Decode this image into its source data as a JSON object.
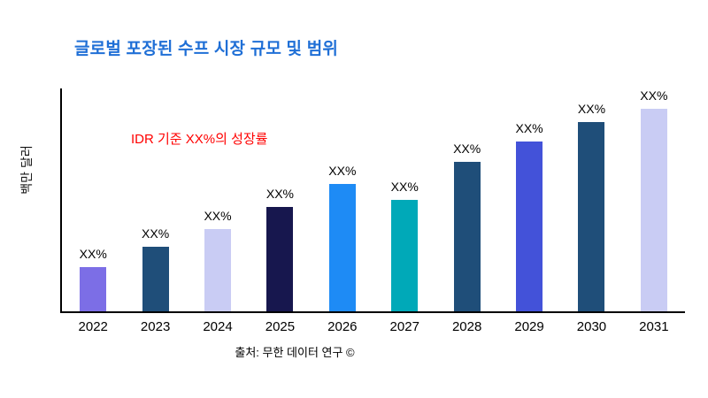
{
  "header": {
    "title": "글로벌 포장된 수프 시장 규모 및 범위"
  },
  "annotation": {
    "text": "IDR 기준 XX%의 성장률"
  },
  "footer": {
    "source": "출처: 무한 데이터 연구 ©"
  },
  "colors": {
    "title": "#1F6FD6",
    "annotation": "#FF0000",
    "axis": "#000000"
  },
  "chart_data": {
    "type": "bar",
    "title": "글로벌 포장된 수프 시장 규모 및 범위",
    "xlabel": "",
    "ylabel": "백만 달러",
    "categories": [
      "2022",
      "2023",
      "2024",
      "2025",
      "2026",
      "2027",
      "2028",
      "2029",
      "2030",
      "2031"
    ],
    "values": [
      20,
      29,
      37,
      47,
      57,
      50,
      67,
      76,
      85,
      95
    ],
    "bar_labels": [
      "XX%",
      "XX%",
      "XX%",
      "XX%",
      "XX%",
      "XX%",
      "XX%",
      "XX%",
      "XX%",
      "XX%"
    ],
    "bar_colors": [
      "#7C6EE6",
      "#1F4E79",
      "#C9CCF4",
      "#17174E",
      "#1E8BF5",
      "#00A9B8",
      "#1F4E79",
      "#4352D9",
      "#1F4E79",
      "#C9CCF4"
    ],
    "ylim": [
      0,
      100
    ],
    "grid": false,
    "legend": false,
    "legend_position": "none",
    "annotation_text": "IDR 기준 XX%의 성장률"
  }
}
